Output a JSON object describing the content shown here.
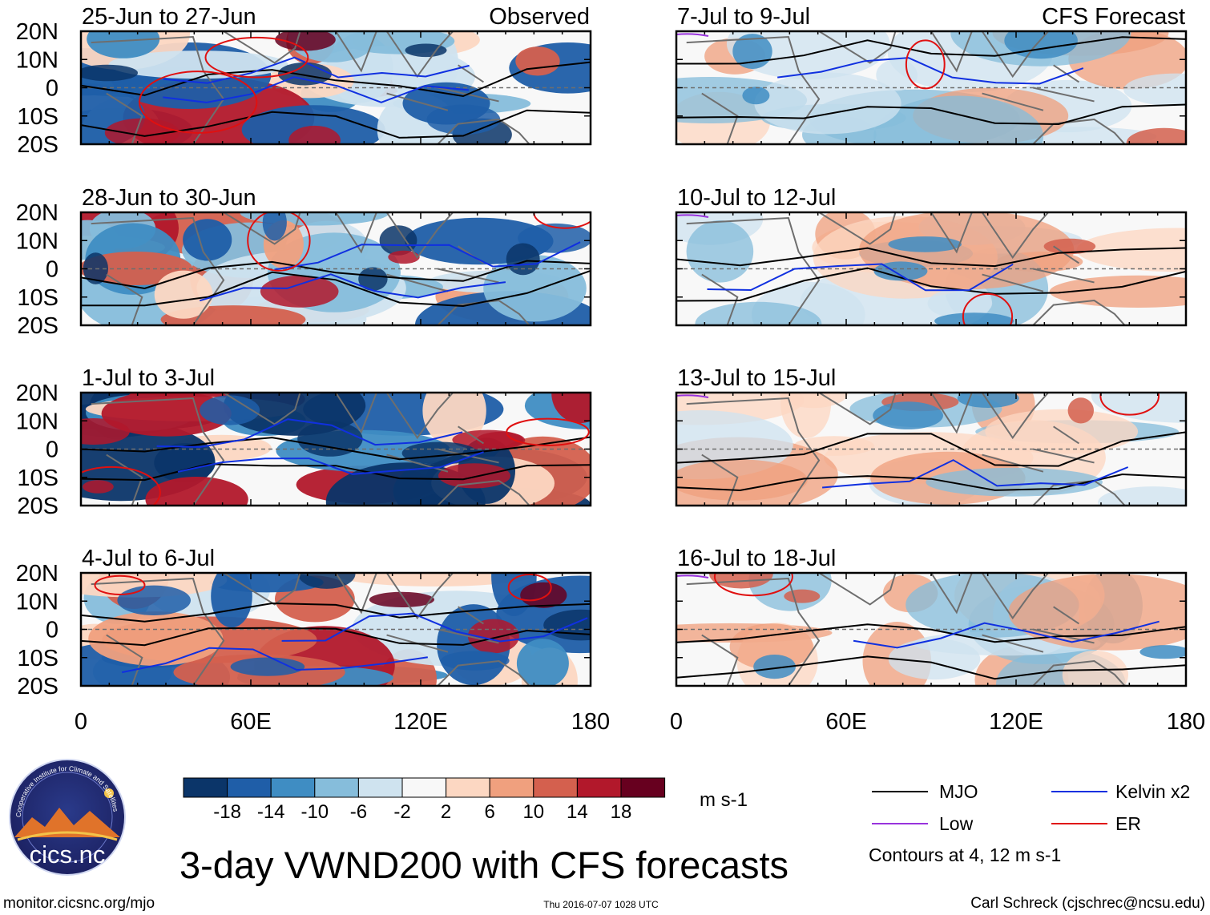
{
  "figure_title": "3-day VWND200 with CFS forecasts",
  "colorbar": {
    "ticks": [
      "-18",
      "-14",
      "-10",
      "-6",
      "-2",
      "2",
      "6",
      "10",
      "14",
      "18"
    ],
    "colors": [
      "#0b3569",
      "#1f5ea8",
      "#3f8dc3",
      "#86bddb",
      "#cfe3ef",
      "#f8f8f8",
      "#fcd7c2",
      "#f0a07e",
      "#d4604e",
      "#b2182b",
      "#67001f"
    ],
    "units": "m s-1"
  },
  "legend": {
    "items": [
      {
        "label": "MJO",
        "color": "#000000"
      },
      {
        "label": "Kelvin x2",
        "color": "#1030e0"
      },
      {
        "label": "Low",
        "color": "#9933dd"
      },
      {
        "label": "ER",
        "color": "#e01010"
      }
    ],
    "note": "Contours at 4, 12 m s-1"
  },
  "footer": {
    "left": "monitor.cicsnc.org/mjo",
    "center": "Thu 2016-07-07 1028 UTC",
    "right": "Carl Schreck (cjschrec@ncsu.edu)"
  },
  "logo": {
    "text": "cics.nc",
    "ring_text": "Cooperative Institute for Climate and Satellites"
  },
  "chart_data": {
    "type": "heatmap",
    "variable": "VWND200",
    "xlabel": "",
    "ylabel": "",
    "xlim": [
      0,
      180
    ],
    "ylim": [
      -20,
      20
    ],
    "xticks": [
      "0",
      "60E",
      "120E",
      "180"
    ],
    "yticks": [
      "20N",
      "10N",
      "0",
      "10S",
      "20S"
    ],
    "panels": [
      {
        "title": "25-Jun to 27-Jun",
        "label": "Observed",
        "kind": "observed"
      },
      {
        "title": "28-Jun to 30-Jun",
        "label": "",
        "kind": "observed"
      },
      {
        "title": "1-Jul to 3-Jul",
        "label": "",
        "kind": "observed"
      },
      {
        "title": "4-Jul to 6-Jul",
        "label": "",
        "kind": "observed"
      },
      {
        "title": "7-Jul to 9-Jul",
        "label": "CFS Forecast",
        "kind": "forecast"
      },
      {
        "title": "10-Jul to 12-Jul",
        "label": "",
        "kind": "forecast"
      },
      {
        "title": "13-Jul to 15-Jul",
        "label": "",
        "kind": "forecast"
      },
      {
        "title": "16-Jul to 18-Jul",
        "label": "",
        "kind": "forecast"
      }
    ]
  }
}
